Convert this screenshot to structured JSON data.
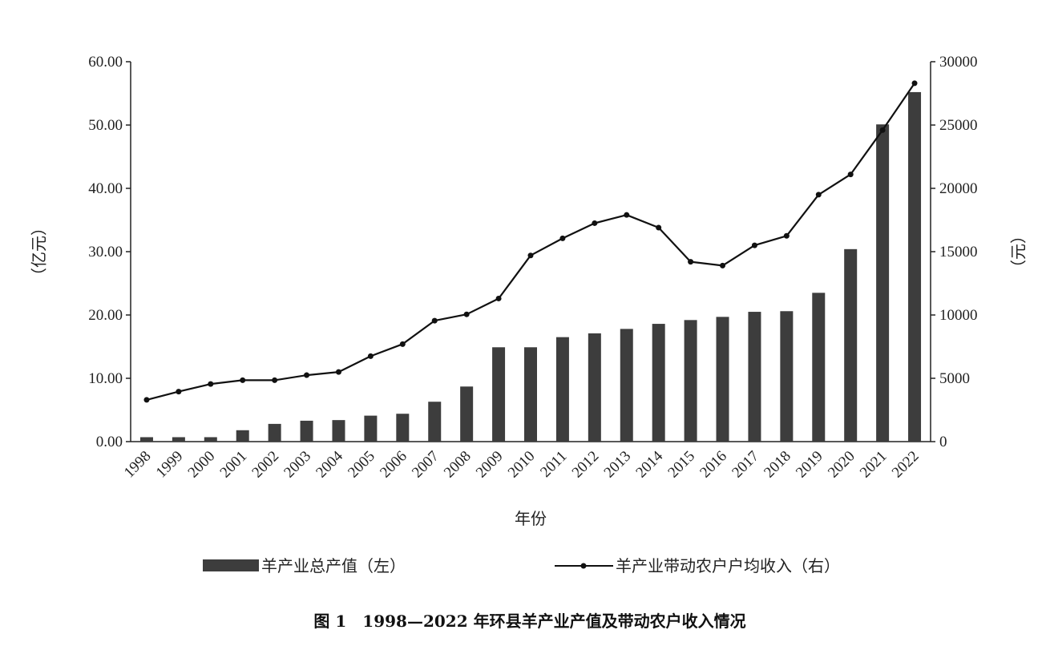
{
  "chart_data": {
    "type": "bar",
    "categories": [
      "1998",
      "1999",
      "2000",
      "2001",
      "2002",
      "2003",
      "2004",
      "2005",
      "2006",
      "2007",
      "2008",
      "2009",
      "2010",
      "2011",
      "2012",
      "2013",
      "2014",
      "2015",
      "2016",
      "2017",
      "2018",
      "2019",
      "2020",
      "2021",
      "2022"
    ],
    "series": [
      {
        "name": "羊产业总产值（左）",
        "type": "bar",
        "axis": "left",
        "color": "#3d3d3d",
        "values": [
          0.7,
          0.7,
          0.7,
          1.8,
          2.8,
          3.3,
          3.4,
          4.1,
          4.4,
          6.3,
          8.7,
          14.9,
          14.9,
          16.5,
          17.1,
          17.8,
          18.6,
          19.2,
          19.7,
          20.5,
          20.6,
          23.5,
          30.4,
          50.1,
          55.2
        ]
      },
      {
        "name": "羊产业带动农户户均收入（右）",
        "type": "line",
        "axis": "right",
        "color": "#111111",
        "values": [
          3300,
          3950,
          4550,
          4850,
          4850,
          5250,
          5500,
          6750,
          7700,
          9550,
          10050,
          11300,
          14700,
          16050,
          17250,
          17900,
          16900,
          14200,
          13900,
          15500,
          16250,
          19500,
          21100,
          24600,
          28300
        ]
      }
    ],
    "y_left": {
      "label": "（亿元）",
      "range": [
        0,
        60
      ],
      "ticks": [
        "0.00",
        "10.00",
        "20.00",
        "30.00",
        "40.00",
        "50.00",
        "60.00"
      ],
      "tick_values": [
        0,
        10,
        20,
        30,
        40,
        50,
        60
      ]
    },
    "y_right": {
      "label": "（元）",
      "range": [
        0,
        30000
      ],
      "ticks": [
        "0",
        "5000",
        "10000",
        "15000",
        "20000",
        "25000",
        "30000"
      ],
      "tick_values": [
        0,
        5000,
        10000,
        15000,
        20000,
        25000,
        30000
      ]
    },
    "xlabel": "年份",
    "grid": false,
    "legend_position": "bottom",
    "caption": "图 1　1998—2022 年环县羊产业产值及带动农户收入情况"
  }
}
